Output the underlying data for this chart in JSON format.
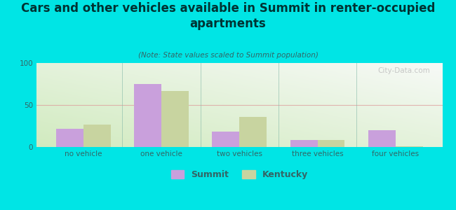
{
  "title": "Cars and other vehicles available in Summit in renter-occupied\napartments",
  "subtitle": "(Note: State values scaled to Summit population)",
  "categories": [
    "no vehicle",
    "one vehicle",
    "two vehicles",
    "three vehicles",
    "four vehicles"
  ],
  "summit_values": [
    22,
    75,
    18,
    8,
    20
  ],
  "kentucky_values": [
    27,
    67,
    36,
    8,
    1
  ],
  "summit_color": "#c9a0dc",
  "kentucky_color": "#c8d4a0",
  "background_color": "#00e5e5",
  "ylim": [
    0,
    100
  ],
  "yticks": [
    0,
    50,
    100
  ],
  "bar_width": 0.35,
  "title_fontsize": 12,
  "subtitle_fontsize": 7.5,
  "tick_fontsize": 7.5,
  "legend_fontsize": 9,
  "title_color": "#003333",
  "axis_color": "#336666",
  "tick_color": "#336666",
  "watermark": "City-Data.com"
}
